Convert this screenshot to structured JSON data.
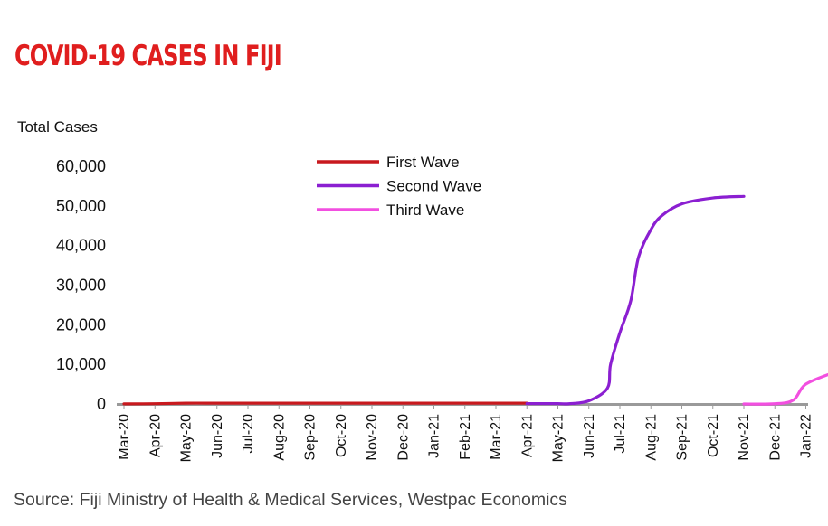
{
  "colors": {
    "title": "#e01e1e",
    "axis": "#9a9a9a",
    "first_wave": "#c8191e",
    "second_wave": "#8b1fd1",
    "third_wave": "#f24fe0"
  },
  "source": "Source: Fiji Ministry of Health & Medical Services, Westpac Economics",
  "chart_data": {
    "type": "line",
    "title": "COVID-19 CASES IN FIJI",
    "ylabel": "Total Cases",
    "xlabel": "",
    "ylim": [
      0,
      60000
    ],
    "yticks": [
      0,
      10000,
      20000,
      30000,
      40000,
      50000,
      60000
    ],
    "ytick_labels": [
      "0",
      "10,000",
      "20,000",
      "30,000",
      "40,000",
      "50,000",
      "60,000"
    ],
    "categories": [
      "Mar-20",
      "Apr-20",
      "May-20",
      "Jun-20",
      "Jul-20",
      "Aug-20",
      "Sep-20",
      "Oct-20",
      "Nov-20",
      "Dec-20",
      "Jan-21",
      "Feb-21",
      "Mar-21",
      "Apr-21",
      "May-21",
      "Jun-21",
      "Jul-21",
      "Aug-21",
      "Sep-21",
      "Oct-21",
      "Nov-21",
      "Dec-21",
      "Jan-22"
    ],
    "grid": false,
    "legend_position": "top-center",
    "series": [
      {
        "name": "First Wave",
        "points": [
          [
            "Mar-20",
            20
          ],
          [
            "Apr-20",
            70
          ],
          [
            "May-20",
            200
          ],
          [
            "Jun-20",
            200
          ],
          [
            "Jul-20",
            200
          ],
          [
            "Aug-20",
            200
          ],
          [
            "Sep-20",
            200
          ],
          [
            "Oct-20",
            200
          ],
          [
            "Nov-20",
            200
          ],
          [
            "Dec-20",
            200
          ],
          [
            "Jan-21",
            200
          ],
          [
            "Feb-21",
            200
          ],
          [
            "Mar-21",
            200
          ],
          [
            "Apr-21",
            200
          ]
        ]
      },
      {
        "name": "Second Wave",
        "points": [
          [
            "Apr-21",
            100
          ],
          [
            "May-21",
            100
          ],
          [
            "May-21 mid",
            60
          ],
          [
            "Jun-21",
            800
          ],
          [
            "Jun-21 late",
            4000
          ],
          [
            "Jul-21 early",
            10000
          ],
          [
            "Jul-21",
            18000
          ],
          [
            "Jul-21 mid",
            26000
          ],
          [
            "Jul-21 late",
            37000
          ],
          [
            "Aug-21",
            44000
          ],
          [
            "Aug-21 mid",
            47500
          ],
          [
            "Sep-21",
            50500
          ],
          [
            "Oct-21",
            52000
          ],
          [
            "Nov-21",
            52400
          ]
        ]
      },
      {
        "name": "Third Wave",
        "points": [
          [
            "Nov-21",
            0
          ],
          [
            "Dec-21",
            50
          ],
          [
            "Dec-21 late",
            1000
          ],
          [
            "Jan-22",
            5000
          ],
          [
            "Jan-22 end",
            8000
          ]
        ]
      }
    ]
  }
}
